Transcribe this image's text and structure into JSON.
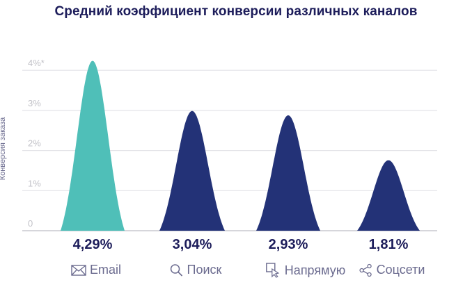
{
  "title": "Средний коэффициент конверсии различных каналов",
  "colors": {
    "highlight": "#4fbfb8",
    "primary": "#233277",
    "title": "#1c1c5a",
    "label": "#6b6b8f",
    "grid": "#e3e3e8",
    "tick": "#c2c2c8"
  },
  "chart_data": {
    "type": "area",
    "title": "Средний коэффициент конверсии различных каналов",
    "xlabel": "",
    "ylabel": "Конверсия заказа",
    "yticks": [
      "0",
      "1%",
      "2%",
      "3%",
      "4%*"
    ],
    "ylim": [
      0,
      4.3
    ],
    "grid": true,
    "categories": [
      "Email",
      "Поиск",
      "Напрямую",
      "Соцсети"
    ],
    "values": [
      4.29,
      3.04,
      2.93,
      1.81
    ],
    "value_labels": [
      "4,29%",
      "3,04%",
      "2,93%",
      "1,81%"
    ],
    "category_icons": [
      "envelope-icon",
      "magnifier-icon",
      "cursor-click-icon",
      "share-icon"
    ],
    "series_colors": [
      "#4fbfb8",
      "#233277",
      "#233277",
      "#233277"
    ]
  }
}
